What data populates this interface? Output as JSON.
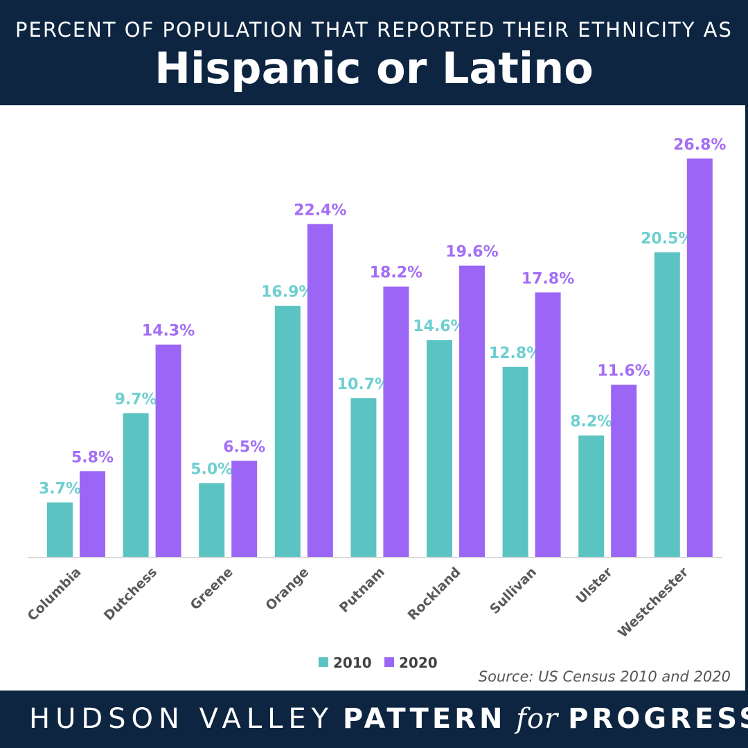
{
  "header": {
    "subtitle": "PERCENT OF POPULATION THAT REPORTED THEIR ETHNICITY AS",
    "title": "Hispanic or Latino"
  },
  "footer": {
    "brand_part1": "HUDSON VALLEY",
    "brand_part2": "PATTERN",
    "brand_for": "for",
    "brand_part3": "PROGRESS"
  },
  "source": "Source: US Census 2010 and 2020",
  "colors": {
    "header_bg": "#0d2540",
    "series_2010": "#5bc4c2",
    "series_2020": "#9b66f5",
    "label_2010": "#6fcfcf",
    "label_2020": "#a36ef5"
  },
  "chart_data": {
    "type": "bar",
    "title": "Hispanic or Latino",
    "subtitle": "PERCENT OF POPULATION THAT REPORTED THEIR ETHNICITY AS",
    "categories": [
      "Columbia",
      "Dutchess",
      "Greene",
      "Orange",
      "Putnam",
      "Rockland",
      "Sullivan",
      "Ulster",
      "Westchester"
    ],
    "series": [
      {
        "name": "2010",
        "values": [
          3.7,
          9.7,
          5.0,
          16.9,
          10.7,
          14.6,
          12.8,
          8.2,
          20.5
        ],
        "labels": [
          "3.7%",
          "9.7%",
          "5.0%",
          "16.9%",
          "10.7%",
          "14.6%",
          "12.8%",
          "8.2%",
          "20.5%"
        ]
      },
      {
        "name": "2020",
        "values": [
          5.8,
          14.3,
          6.5,
          22.4,
          18.2,
          19.6,
          17.8,
          11.6,
          26.8
        ],
        "labels": [
          "5.8%",
          "14.3%",
          "6.5%",
          "22.4%",
          "18.2%",
          "19.6%",
          "17.8%",
          "11.6%",
          "26.8%"
        ]
      }
    ],
    "xlabel": "",
    "ylabel": "",
    "ylim": [
      0,
      30
    ],
    "grid": false,
    "legend": "bottom-center",
    "x_tick_rotation": "diagonal"
  }
}
